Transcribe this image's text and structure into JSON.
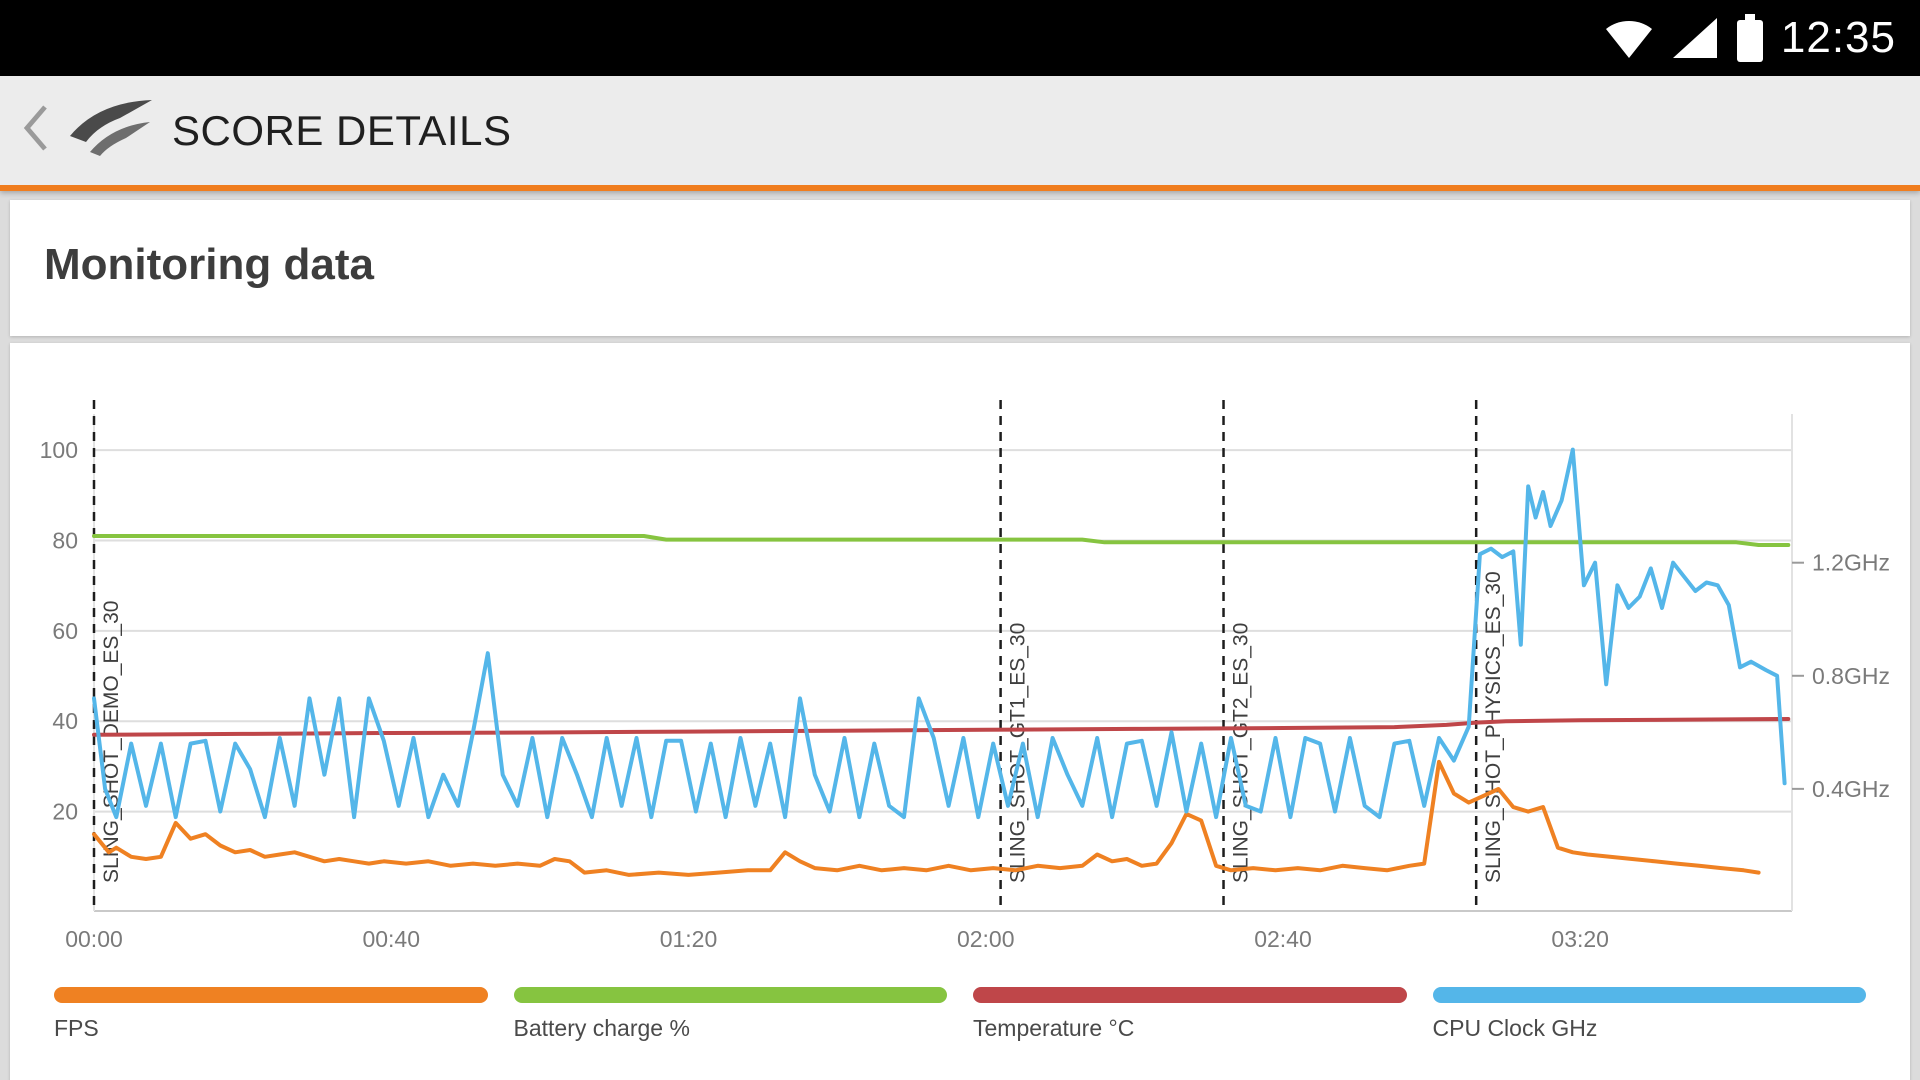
{
  "status_bar": {
    "time": "12:35"
  },
  "header": {
    "title": "SCORE DETAILS",
    "accent_color": "#F07D1E"
  },
  "main": {
    "section_title": "Monitoring data"
  },
  "chart_data": {
    "type": "line",
    "title": "Monitoring data",
    "x_axis": {
      "range_s": [
        0,
        228.5
      ],
      "ticks": [
        {
          "label": "00:00",
          "t": 0
        },
        {
          "label": "00:40",
          "t": 40
        },
        {
          "label": "01:20",
          "t": 80
        },
        {
          "label": "02:00",
          "t": 120
        },
        {
          "label": "02:40",
          "t": 160
        },
        {
          "label": "03:20",
          "t": 200
        }
      ]
    },
    "left_axis": {
      "range": [
        -2,
        108
      ],
      "ticks": [
        20,
        40,
        60,
        80,
        100
      ]
    },
    "right_axis": {
      "range": [
        -0.032,
        1.726
      ],
      "ticks": [
        0.4,
        0.8,
        1.2
      ],
      "tick_suffix": "GHz"
    },
    "event_markers": [
      {
        "label": "SLING_SHOT_DEMO_ES_30",
        "t": 0
      },
      {
        "label": "SLING_SHOT_GT1_ES_30",
        "t": 122
      },
      {
        "label": "SLING_SHOT_GT2_ES_30",
        "t": 152
      },
      {
        "label": "SLING_SHOT_PHYSICS_ES_30",
        "t": 186
      }
    ],
    "series": [
      {
        "name": "FPS",
        "color": "#EF8122",
        "axis": "left",
        "points": [
          [
            0,
            15
          ],
          [
            2,
            11
          ],
          [
            3,
            12
          ],
          [
            5,
            10
          ],
          [
            7,
            9.5
          ],
          [
            9,
            10
          ],
          [
            11,
            17.5
          ],
          [
            13,
            14
          ],
          [
            15,
            15
          ],
          [
            17,
            12.5
          ],
          [
            19,
            11
          ],
          [
            21,
            11.5
          ],
          [
            23,
            10
          ],
          [
            25,
            10.5
          ],
          [
            27,
            11
          ],
          [
            29,
            10
          ],
          [
            31,
            9
          ],
          [
            33,
            9.5
          ],
          [
            35,
            9
          ],
          [
            37,
            8.5
          ],
          [
            39,
            9
          ],
          [
            42,
            8.5
          ],
          [
            45,
            9
          ],
          [
            48,
            8
          ],
          [
            51,
            8.5
          ],
          [
            54,
            8
          ],
          [
            57,
            8.5
          ],
          [
            60,
            8
          ],
          [
            62,
            9.5
          ],
          [
            64,
            9
          ],
          [
            66,
            6.5
          ],
          [
            69,
            7
          ],
          [
            72,
            6
          ],
          [
            76,
            6.5
          ],
          [
            80,
            6
          ],
          [
            84,
            6.5
          ],
          [
            88,
            7
          ],
          [
            91,
            7
          ],
          [
            93,
            11
          ],
          [
            95,
            9
          ],
          [
            97,
            7.5
          ],
          [
            100,
            7
          ],
          [
            103,
            8
          ],
          [
            106,
            7
          ],
          [
            109,
            7.5
          ],
          [
            112,
            7
          ],
          [
            115,
            8
          ],
          [
            118,
            7
          ],
          [
            121,
            7.5
          ],
          [
            124,
            7
          ],
          [
            127,
            8
          ],
          [
            130,
            7.5
          ],
          [
            133,
            8
          ],
          [
            135,
            10.5
          ],
          [
            137,
            9
          ],
          [
            139,
            9.5
          ],
          [
            141,
            8
          ],
          [
            143,
            8.5
          ],
          [
            145,
            13
          ],
          [
            147,
            19.5
          ],
          [
            149,
            18
          ],
          [
            151,
            8
          ],
          [
            153,
            7
          ],
          [
            156,
            7.5
          ],
          [
            159,
            7
          ],
          [
            162,
            7.5
          ],
          [
            165,
            7
          ],
          [
            168,
            8
          ],
          [
            171,
            7.5
          ],
          [
            174,
            7
          ],
          [
            177,
            8
          ],
          [
            179,
            8.5
          ],
          [
            181,
            31
          ],
          [
            183,
            24
          ],
          [
            185,
            22
          ],
          [
            187,
            23.5
          ],
          [
            189,
            25
          ],
          [
            191,
            21
          ],
          [
            193,
            20
          ],
          [
            195,
            21
          ],
          [
            197,
            12
          ],
          [
            199,
            11
          ],
          [
            201,
            10.5
          ],
          [
            204,
            10
          ],
          [
            207,
            9.5
          ],
          [
            210,
            9
          ],
          [
            213,
            8.5
          ],
          [
            216,
            8
          ],
          [
            219,
            7.5
          ],
          [
            222,
            7
          ],
          [
            224,
            6.5
          ]
        ]
      },
      {
        "name": "Battery charge %",
        "color": "#86C440",
        "axis": "left",
        "points": [
          [
            0,
            81
          ],
          [
            74,
            81
          ],
          [
            77,
            80.2
          ],
          [
            133,
            80.2
          ],
          [
            136,
            79.6
          ],
          [
            221,
            79.6
          ],
          [
            224,
            79
          ],
          [
            228,
            79
          ]
        ]
      },
      {
        "name": "Temperature °C",
        "color": "#BF4649",
        "axis": "left",
        "points": [
          [
            0,
            37
          ],
          [
            20,
            37.2
          ],
          [
            40,
            37.4
          ],
          [
            60,
            37.5
          ],
          [
            80,
            37.7
          ],
          [
            100,
            37.9
          ],
          [
            120,
            38.1
          ],
          [
            140,
            38.3
          ],
          [
            160,
            38.5
          ],
          [
            175,
            38.7
          ],
          [
            182,
            39.2
          ],
          [
            186,
            39.7
          ],
          [
            190,
            40
          ],
          [
            200,
            40.2
          ],
          [
            210,
            40.3
          ],
          [
            220,
            40.4
          ],
          [
            228,
            40.5
          ]
        ]
      },
      {
        "name": "CPU Clock GHz",
        "color": "#54B6E9",
        "axis": "right",
        "points": [
          [
            0,
            0.72
          ],
          [
            1.5,
            0.4
          ],
          [
            3,
            0.3
          ],
          [
            5,
            0.56
          ],
          [
            7,
            0.34
          ],
          [
            9,
            0.56
          ],
          [
            11,
            0.3
          ],
          [
            13,
            0.56
          ],
          [
            15,
            0.57
          ],
          [
            17,
            0.32
          ],
          [
            19,
            0.56
          ],
          [
            21,
            0.47
          ],
          [
            23,
            0.3
          ],
          [
            25,
            0.58
          ],
          [
            27,
            0.34
          ],
          [
            29,
            0.72
          ],
          [
            31,
            0.45
          ],
          [
            33,
            0.72
          ],
          [
            35,
            0.3
          ],
          [
            37,
            0.72
          ],
          [
            39,
            0.57
          ],
          [
            41,
            0.34
          ],
          [
            43,
            0.58
          ],
          [
            45,
            0.3
          ],
          [
            47,
            0.45
          ],
          [
            49,
            0.34
          ],
          [
            51,
            0.6
          ],
          [
            53,
            0.88
          ],
          [
            55,
            0.45
          ],
          [
            57,
            0.34
          ],
          [
            59,
            0.58
          ],
          [
            61,
            0.3
          ],
          [
            63,
            0.58
          ],
          [
            65,
            0.45
          ],
          [
            67,
            0.3
          ],
          [
            69,
            0.58
          ],
          [
            71,
            0.34
          ],
          [
            73,
            0.58
          ],
          [
            75,
            0.3
          ],
          [
            77,
            0.57
          ],
          [
            79,
            0.57
          ],
          [
            81,
            0.32
          ],
          [
            83,
            0.56
          ],
          [
            85,
            0.3
          ],
          [
            87,
            0.58
          ],
          [
            89,
            0.34
          ],
          [
            91,
            0.56
          ],
          [
            93,
            0.3
          ],
          [
            95,
            0.72
          ],
          [
            97,
            0.45
          ],
          [
            99,
            0.32
          ],
          [
            101,
            0.58
          ],
          [
            103,
            0.3
          ],
          [
            105,
            0.56
          ],
          [
            107,
            0.34
          ],
          [
            109,
            0.3
          ],
          [
            111,
            0.72
          ],
          [
            113,
            0.58
          ],
          [
            115,
            0.34
          ],
          [
            117,
            0.58
          ],
          [
            119,
            0.3
          ],
          [
            121,
            0.56
          ],
          [
            123,
            0.34
          ],
          [
            125,
            0.56
          ],
          [
            127,
            0.3
          ],
          [
            129,
            0.58
          ],
          [
            131,
            0.45
          ],
          [
            133,
            0.34
          ],
          [
            135,
            0.58
          ],
          [
            137,
            0.3
          ],
          [
            139,
            0.56
          ],
          [
            141,
            0.57
          ],
          [
            143,
            0.34
          ],
          [
            145,
            0.6
          ],
          [
            147,
            0.32
          ],
          [
            149,
            0.56
          ],
          [
            151,
            0.3
          ],
          [
            153,
            0.58
          ],
          [
            155,
            0.34
          ],
          [
            157,
            0.32
          ],
          [
            159,
            0.58
          ],
          [
            161,
            0.3
          ],
          [
            163,
            0.58
          ],
          [
            165,
            0.56
          ],
          [
            167,
            0.32
          ],
          [
            169,
            0.58
          ],
          [
            171,
            0.34
          ],
          [
            173,
            0.3
          ],
          [
            175,
            0.56
          ],
          [
            177,
            0.57
          ],
          [
            179,
            0.34
          ],
          [
            181,
            0.58
          ],
          [
            183,
            0.5
          ],
          [
            185,
            0.62
          ],
          [
            186.5,
            1.23
          ],
          [
            188,
            1.25
          ],
          [
            189.5,
            1.22
          ],
          [
            191,
            1.24
          ],
          [
            192,
            0.91
          ],
          [
            193,
            1.47
          ],
          [
            194,
            1.36
          ],
          [
            195,
            1.45
          ],
          [
            196,
            1.33
          ],
          [
            197.5,
            1.42
          ],
          [
            199,
            1.6
          ],
          [
            200.5,
            1.12
          ],
          [
            202,
            1.2
          ],
          [
            203.5,
            0.77
          ],
          [
            205,
            1.12
          ],
          [
            206.5,
            1.04
          ],
          [
            208,
            1.08
          ],
          [
            209.5,
            1.18
          ],
          [
            211,
            1.04
          ],
          [
            212.5,
            1.2
          ],
          [
            214,
            1.15
          ],
          [
            215.5,
            1.1
          ],
          [
            217,
            1.13
          ],
          [
            218.5,
            1.12
          ],
          [
            220,
            1.05
          ],
          [
            221.5,
            0.83
          ],
          [
            223,
            0.85
          ],
          [
            225,
            0.82
          ],
          [
            226.5,
            0.8
          ],
          [
            227.5,
            0.42
          ]
        ]
      }
    ],
    "grid": "horizontal",
    "legend_position": "bottom"
  }
}
